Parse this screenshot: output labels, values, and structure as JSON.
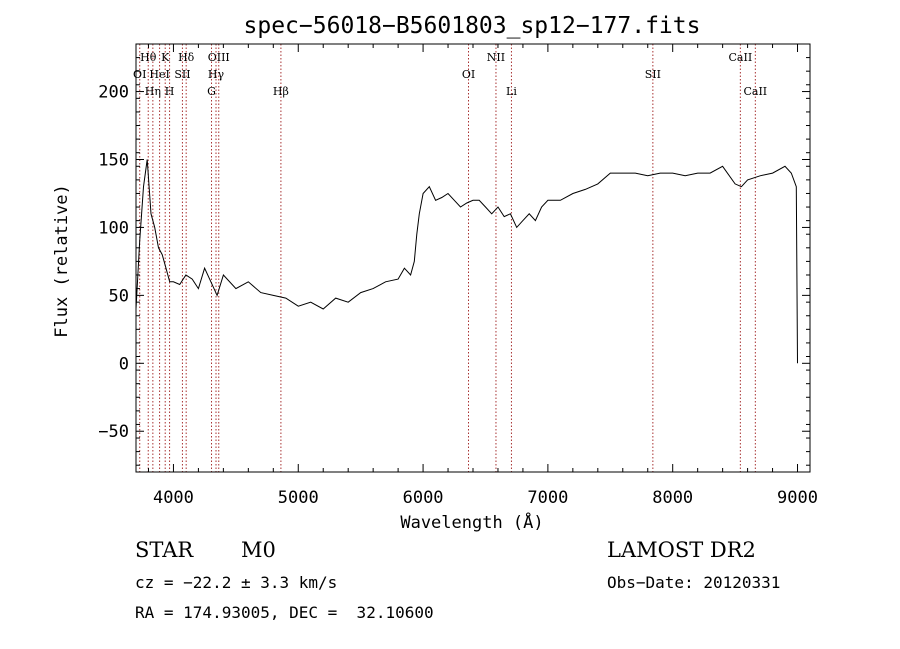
{
  "chart_data": {
    "type": "line",
    "title": "spec−56018−B5601803_sp12−177.fits",
    "xlabel": "Wavelength (Å)",
    "ylabel": "Flux (relative)",
    "xlim": [
      3700,
      9100
    ],
    "ylim": [
      -80,
      235
    ],
    "x_ticks": [
      4000,
      5000,
      6000,
      7000,
      8000,
      9000
    ],
    "y_ticks": [
      -50,
      0,
      50,
      100,
      150,
      200
    ],
    "y_tick_labels": [
      "−50",
      "0",
      "50",
      "100",
      "150",
      "200"
    ],
    "grid": false,
    "series": [
      {
        "x": [
          3700,
          3730,
          3760,
          3790,
          3820,
          3850,
          3880,
          3910,
          3940,
          3970,
          4000,
          4050,
          4100,
          4150,
          4200,
          4250,
          4300,
          4350,
          4400,
          4500,
          4600,
          4700,
          4800,
          4900,
          5000,
          5100,
          5200,
          5300,
          5400,
          5500,
          5600,
          5700,
          5800,
          5850,
          5900,
          5930,
          5950,
          5970,
          6000,
          6050,
          6100,
          6150,
          6200,
          6250,
          6300,
          6350,
          6400,
          6450,
          6500,
          6550,
          6600,
          6650,
          6700,
          6750,
          6800,
          6850,
          6900,
          6950,
          7000,
          7100,
          7200,
          7300,
          7400,
          7500,
          7600,
          7700,
          7800,
          7900,
          8000,
          8100,
          8200,
          8300,
          8400,
          8500,
          8550,
          8600,
          8700,
          8800,
          8900,
          8950,
          8990,
          9000
        ],
        "y": [
          40,
          90,
          130,
          150,
          110,
          100,
          85,
          80,
          70,
          60,
          60,
          58,
          65,
          62,
          55,
          70,
          60,
          50,
          65,
          55,
          60,
          52,
          50,
          48,
          42,
          45,
          40,
          48,
          45,
          52,
          55,
          60,
          62,
          70,
          65,
          75,
          95,
          110,
          125,
          130,
          120,
          122,
          125,
          120,
          115,
          118,
          120,
          120,
          115,
          110,
          115,
          108,
          110,
          100,
          105,
          110,
          105,
          115,
          120,
          120,
          125,
          128,
          132,
          140,
          140,
          140,
          138,
          140,
          140,
          138,
          140,
          140,
          145,
          132,
          130,
          135,
          138,
          140,
          145,
          140,
          130,
          0
        ]
      }
    ],
    "line_markers": [
      {
        "label": "Hθ",
        "x": 3798,
        "row": 0
      },
      {
        "label": "K",
        "x": 3934,
        "row": 0
      },
      {
        "label": "Hδ",
        "x": 4102,
        "row": 0
      },
      {
        "label": "OIII",
        "x": 4363,
        "row": 0
      },
      {
        "label": "NII",
        "x": 6584,
        "row": 0
      },
      {
        "label": "CaII",
        "x": 8542,
        "row": 0
      },
      {
        "label": "OI",
        "x": 3730,
        "row": 1
      },
      {
        "label": "HeI",
        "x": 3889,
        "row": 1
      },
      {
        "label": "SII",
        "x": 4072,
        "row": 1
      },
      {
        "label": "Hγ",
        "x": 4341,
        "row": 1
      },
      {
        "label": "OI",
        "x": 6364,
        "row": 1
      },
      {
        "label": "SII",
        "x": 7841,
        "row": 1
      },
      {
        "label": "Hη",
        "x": 3835,
        "row": 2
      },
      {
        "label": "H",
        "x": 3969,
        "row": 2
      },
      {
        "label": "G",
        "x": 4305,
        "row": 2
      },
      {
        "label": "Hβ",
        "x": 4861,
        "row": 2
      },
      {
        "label": "Li",
        "x": 6708,
        "row": 2
      },
      {
        "label": "CaII",
        "x": 8662,
        "row": 2
      }
    ]
  },
  "info": {
    "class_label": "STAR",
    "subclass_label": "M0",
    "survey_label": "LAMOST DR2",
    "redshift_line": "cz = −22.2 ± 3.3 km/s",
    "obs_date_line": "Obs−Date: 20120331",
    "coords_line": "RA = 174.93005, DEC =  32.10600"
  }
}
